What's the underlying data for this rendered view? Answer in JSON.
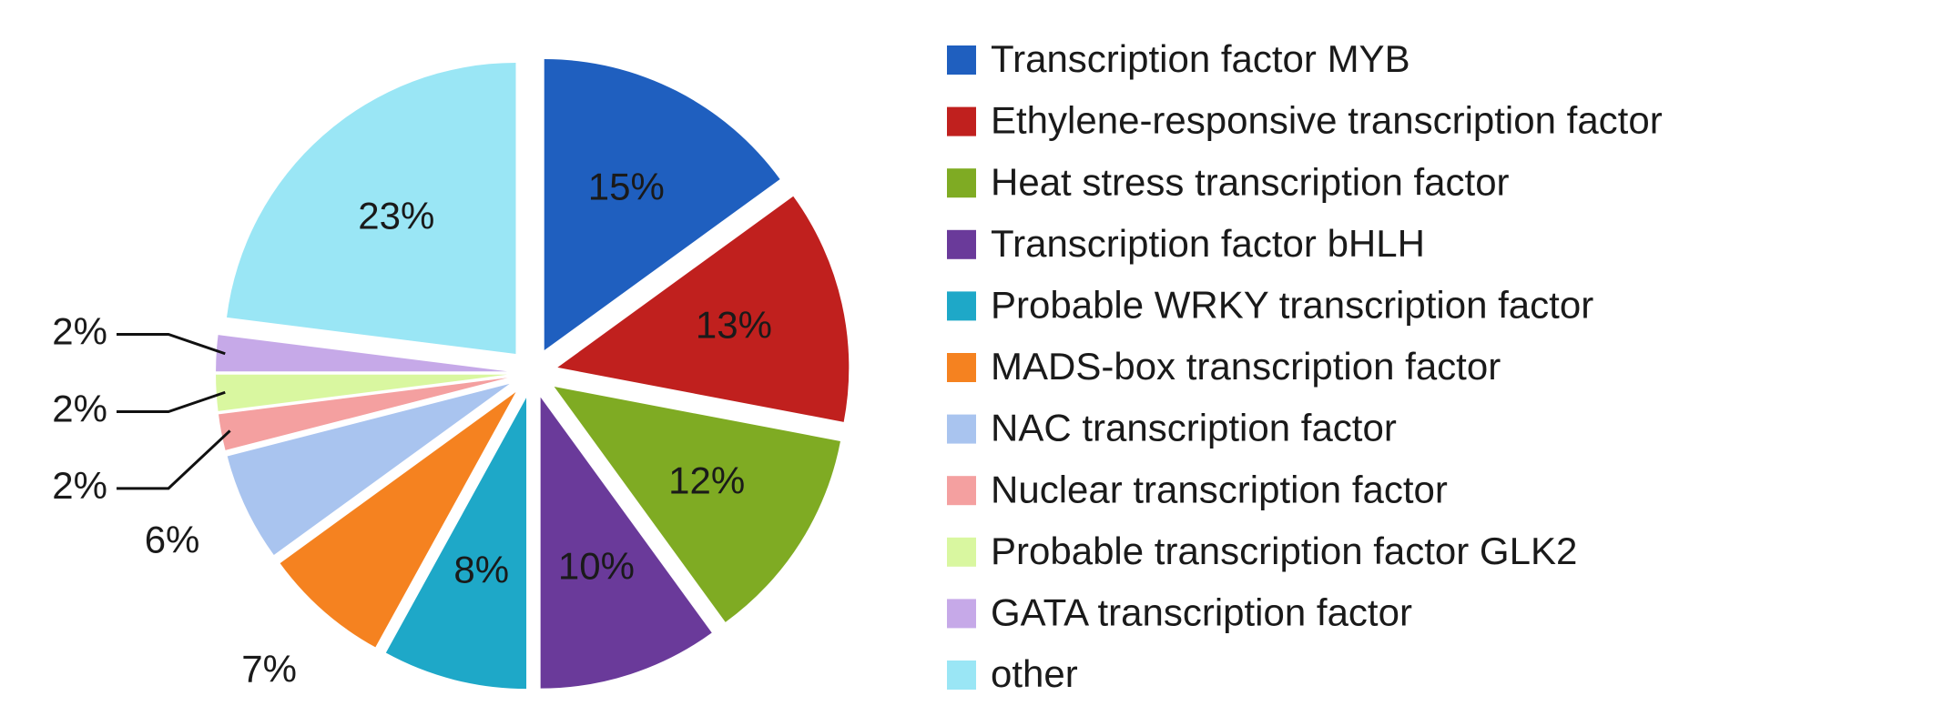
{
  "chart_data": {
    "type": "pie",
    "categories": [
      "Transcription factor MYB",
      "Ethylene-responsive transcription factor",
      "Heat stress transcription factor",
      "Transcription factor bHLH",
      "Probable WRKY transcription factor",
      "MADS-box transcription factor",
      "NAC transcription factor",
      "Nuclear transcription factor",
      "Probable transcription factor GLK2",
      "GATA transcription factor",
      "other"
    ],
    "values": [
      15,
      13,
      12,
      10,
      8,
      7,
      6,
      2,
      2,
      2,
      23
    ],
    "value_labels": [
      "15%",
      "13%",
      "12%",
      "10%",
      "8%",
      "7%",
      "6%",
      "2%",
      "2%",
      "2%",
      "23%"
    ],
    "colors": [
      "#1f5fbf",
      "#c0201e",
      "#7fab23",
      "#6a3a9a",
      "#1ea8c8",
      "#f58220",
      "#a9c4ef",
      "#f4a0a0",
      "#d9f7a0",
      "#c6a9e8",
      "#9ae6f5"
    ],
    "legend": "right"
  }
}
